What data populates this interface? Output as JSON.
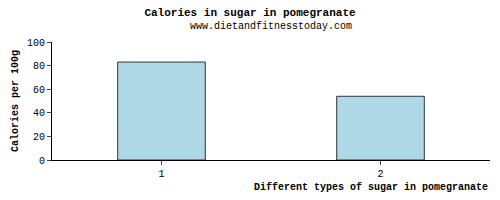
{
  "chart_data": {
    "type": "bar",
    "title": "Calories in sugar in pomegranate",
    "subtitle": "www.dietandfitnesstoday.com",
    "x_label": "Different types of sugar in pomegranate",
    "y_label": "Calories per 100g",
    "categories": [
      "1",
      "2"
    ],
    "values": [
      83,
      54
    ],
    "color": "#add8e6",
    "ylim": [
      0,
      100
    ],
    "yticks": [
      0,
      20,
      40,
      60,
      80,
      100
    ],
    "grid": false
  }
}
